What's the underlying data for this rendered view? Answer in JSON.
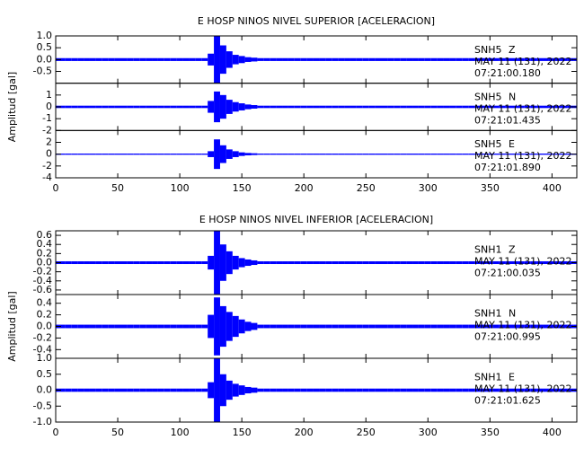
{
  "chart_data": [
    {
      "type": "seismogram",
      "title": "E HOSP NINOS NIVEL SUPERIOR [ACELERACION]",
      "ylabel": "Amplitud [gal]",
      "xlim": [
        0,
        420
      ],
      "xticks": [
        0,
        50,
        100,
        150,
        200,
        250,
        300,
        350,
        400
      ],
      "x": [
        0,
        5,
        10,
        15,
        20,
        25,
        30,
        35,
        40,
        45,
        50,
        55,
        60,
        65,
        70,
        75,
        80,
        85,
        90,
        95,
        100,
        105,
        110,
        115,
        120,
        125,
        130,
        135,
        140,
        145,
        150,
        155,
        160,
        165,
        170,
        175,
        180,
        185,
        190,
        195,
        200,
        205,
        210,
        215,
        220,
        225,
        230,
        235,
        240,
        245,
        250,
        255,
        260,
        265,
        270,
        275,
        280,
        285,
        290,
        295,
        300,
        305,
        310,
        315,
        320,
        325,
        330,
        335,
        340,
        345,
        350,
        355,
        360,
        365,
        370,
        375,
        380,
        385,
        390,
        395,
        400,
        405,
        410,
        415,
        420
      ],
      "series": [
        {
          "name": "SNH5",
          "component": "Z",
          "date": "MAY 11 (131), 2022",
          "time": "07:21:00.180",
          "color": "#0000ff",
          "ylim": [
            -1,
            1
          ],
          "yticks": [
            {
              "value": 1,
              "label": "1.0"
            },
            {
              "value": 0.5,
              "label": "0.5"
            },
            {
              "value": 0,
              "label": "0.0"
            },
            {
              "value": -0.5,
              "label": "-0.5"
            }
          ],
          "values": [
            0.06,
            0.06,
            0.06,
            0.06,
            0.06,
            0.06,
            0.06,
            0.06,
            0.06,
            0.06,
            0.06,
            0.06,
            0.06,
            0.06,
            0.06,
            0.06,
            0.06,
            0.06,
            0.06,
            0.06,
            0.06,
            0.06,
            0.06,
            0.06,
            0.06,
            0.25,
            1.0,
            0.6,
            0.35,
            0.2,
            0.15,
            0.1,
            0.08,
            0.06,
            0.06,
            0.06,
            0.06,
            0.06,
            0.06,
            0.06,
            0.06,
            0.06,
            0.06,
            0.06,
            0.06,
            0.06,
            0.06,
            0.06,
            0.06,
            0.06,
            0.06,
            0.06,
            0.06,
            0.06,
            0.06,
            0.06,
            0.06,
            0.06,
            0.06,
            0.06,
            0.06,
            0.06,
            0.06,
            0.06,
            0.06,
            0.06,
            0.06,
            0.06,
            0.06,
            0.06,
            0.06,
            0.06,
            0.06,
            0.06,
            0.06,
            0.06,
            0.06,
            0.06,
            0.06,
            0.06,
            0.06,
            0.06,
            0.06,
            0.06,
            0.06
          ]
        },
        {
          "name": "SNH5",
          "component": "N",
          "date": "MAY 11 (131), 2022",
          "time": "07:21:01.435",
          "color": "#0000ff",
          "ylim": [
            -2,
            2
          ],
          "yticks": [
            1,
            0,
            -1,
            -2
          ],
          "values": [
            0.1,
            0.1,
            0.1,
            0.1,
            0.1,
            0.1,
            0.1,
            0.1,
            0.1,
            0.1,
            0.1,
            0.1,
            0.1,
            0.1,
            0.1,
            0.1,
            0.1,
            0.1,
            0.1,
            0.1,
            0.1,
            0.1,
            0.1,
            0.1,
            0.1,
            0.5,
            1.3,
            1.0,
            0.6,
            0.4,
            0.3,
            0.2,
            0.15,
            0.1,
            0.1,
            0.1,
            0.1,
            0.1,
            0.1,
            0.1,
            0.1,
            0.1,
            0.1,
            0.1,
            0.1,
            0.1,
            0.1,
            0.1,
            0.1,
            0.1,
            0.1,
            0.1,
            0.1,
            0.1,
            0.1,
            0.1,
            0.1,
            0.1,
            0.1,
            0.1,
            0.1,
            0.1,
            0.1,
            0.1,
            0.1,
            0.1,
            0.1,
            0.1,
            0.1,
            0.1,
            0.1,
            0.1,
            0.1,
            0.1,
            0.1,
            0.1,
            0.1,
            0.1,
            0.1,
            0.1,
            0.1,
            0.1,
            0.1,
            0.1,
            0.1
          ]
        },
        {
          "name": "SNH5",
          "component": "E",
          "date": "MAY 11 (131), 2022",
          "time": "07:21:01.890",
          "color": "#0000ff",
          "ylim": [
            -4,
            4
          ],
          "yticks": [
            2,
            0,
            -2,
            -4
          ],
          "values": [
            0.1,
            0.1,
            0.1,
            0.1,
            0.1,
            0.1,
            0.1,
            0.1,
            0.1,
            0.1,
            0.1,
            0.1,
            0.1,
            0.1,
            0.1,
            0.1,
            0.1,
            0.1,
            0.1,
            0.1,
            0.1,
            0.1,
            0.1,
            0.1,
            0.1,
            0.5,
            2.5,
            1.5,
            0.8,
            0.5,
            0.3,
            0.2,
            0.15,
            0.1,
            0.1,
            0.1,
            0.1,
            0.1,
            0.1,
            0.1,
            0.1,
            0.1,
            0.1,
            0.1,
            0.1,
            0.1,
            0.1,
            0.1,
            0.1,
            0.1,
            0.1,
            0.1,
            0.1,
            0.1,
            0.1,
            0.1,
            0.1,
            0.1,
            0.1,
            0.1,
            0.1,
            0.1,
            0.1,
            0.1,
            0.1,
            0.1,
            0.1,
            0.1,
            0.1,
            0.1,
            0.1,
            0.1,
            0.1,
            0.1,
            0.1,
            0.1,
            0.1,
            0.1,
            0.1,
            0.1,
            0.1,
            0.1,
            0.1,
            0.1,
            0.1
          ]
        }
      ]
    },
    {
      "type": "seismogram",
      "title": "E HOSP NINOS NIVEL INFERIOR [ACELERACION]",
      "ylabel": "Amplitud [gal]",
      "xlim": [
        0,
        420
      ],
      "xticks": [
        0,
        50,
        100,
        150,
        200,
        250,
        300,
        350,
        400
      ],
      "x": [
        0,
        5,
        10,
        15,
        20,
        25,
        30,
        35,
        40,
        45,
        50,
        55,
        60,
        65,
        70,
        75,
        80,
        85,
        90,
        95,
        100,
        105,
        110,
        115,
        120,
        125,
        130,
        135,
        140,
        145,
        150,
        155,
        160,
        165,
        170,
        175,
        180,
        185,
        190,
        195,
        200,
        205,
        210,
        215,
        220,
        225,
        230,
        235,
        240,
        245,
        250,
        255,
        260,
        265,
        270,
        275,
        280,
        285,
        290,
        295,
        300,
        305,
        310,
        315,
        320,
        325,
        330,
        335,
        340,
        345,
        350,
        355,
        360,
        365,
        370,
        375,
        380,
        385,
        390,
        395,
        400,
        405,
        410,
        415,
        420
      ],
      "series": [
        {
          "name": "SNH1",
          "component": "Z",
          "date": "MAY 11 (131), 2022",
          "time": "07:21:00.035",
          "color": "#0000ff",
          "ylim": [
            -0.7,
            0.7
          ],
          "yticks": [
            0.6,
            0.4,
            0.2,
            {
              "value": 0,
              "label": "0.0"
            },
            -0.2,
            -0.4,
            -0.6
          ],
          "values": [
            0.03,
            0.03,
            0.03,
            0.03,
            0.03,
            0.03,
            0.03,
            0.03,
            0.03,
            0.03,
            0.03,
            0.03,
            0.03,
            0.03,
            0.03,
            0.03,
            0.03,
            0.03,
            0.03,
            0.03,
            0.03,
            0.03,
            0.03,
            0.03,
            0.03,
            0.15,
            0.7,
            0.4,
            0.25,
            0.15,
            0.1,
            0.07,
            0.05,
            0.03,
            0.03,
            0.03,
            0.03,
            0.03,
            0.03,
            0.03,
            0.03,
            0.03,
            0.03,
            0.03,
            0.03,
            0.03,
            0.03,
            0.03,
            0.03,
            0.03,
            0.03,
            0.03,
            0.03,
            0.03,
            0.03,
            0.03,
            0.03,
            0.03,
            0.03,
            0.03,
            0.03,
            0.03,
            0.03,
            0.03,
            0.03,
            0.03,
            0.03,
            0.03,
            0.03,
            0.03,
            0.03,
            0.03,
            0.03,
            0.03,
            0.03,
            0.03,
            0.03,
            0.03,
            0.03,
            0.03,
            0.03,
            0.03,
            0.03,
            0.03,
            0.03
          ]
        },
        {
          "name": "SNH1",
          "component": "N",
          "date": "MAY 11 (131), 2022",
          "time": "07:21:00.995",
          "color": "#0000ff",
          "ylim": [
            -0.55,
            0.55
          ],
          "yticks": [
            0.4,
            0.2,
            {
              "value": 0,
              "label": "0.0"
            },
            -0.2,
            -0.4
          ],
          "values": [
            0.03,
            0.03,
            0.03,
            0.03,
            0.03,
            0.03,
            0.03,
            0.03,
            0.03,
            0.03,
            0.03,
            0.03,
            0.03,
            0.03,
            0.03,
            0.03,
            0.03,
            0.03,
            0.03,
            0.03,
            0.03,
            0.03,
            0.03,
            0.03,
            0.03,
            0.2,
            0.5,
            0.35,
            0.25,
            0.18,
            0.12,
            0.08,
            0.06,
            0.03,
            0.03,
            0.03,
            0.03,
            0.03,
            0.03,
            0.03,
            0.03,
            0.03,
            0.03,
            0.03,
            0.03,
            0.03,
            0.03,
            0.03,
            0.03,
            0.03,
            0.03,
            0.03,
            0.03,
            0.03,
            0.03,
            0.03,
            0.03,
            0.03,
            0.03,
            0.03,
            0.03,
            0.03,
            0.03,
            0.03,
            0.03,
            0.03,
            0.03,
            0.03,
            0.03,
            0.03,
            0.03,
            0.03,
            0.03,
            0.03,
            0.03,
            0.03,
            0.03,
            0.03,
            0.03,
            0.03,
            0.03,
            0.03,
            0.03,
            0.03,
            0.03
          ]
        },
        {
          "name": "SNH1",
          "component": "E",
          "date": "MAY 11 (131), 2022",
          "time": "07:21:01.625",
          "color": "#0000ff",
          "ylim": [
            -1,
            1
          ],
          "yticks": [
            {
              "value": 1,
              "label": "1.0"
            },
            0.5,
            {
              "value": 0,
              "label": "0.0"
            },
            -0.5,
            {
              "value": -1,
              "label": "-1.0"
            }
          ],
          "values": [
            0.05,
            0.05,
            0.05,
            0.05,
            0.05,
            0.05,
            0.05,
            0.05,
            0.05,
            0.05,
            0.05,
            0.05,
            0.05,
            0.05,
            0.05,
            0.05,
            0.05,
            0.05,
            0.05,
            0.05,
            0.05,
            0.05,
            0.05,
            0.05,
            0.05,
            0.25,
            1.0,
            0.5,
            0.3,
            0.2,
            0.15,
            0.1,
            0.08,
            0.05,
            0.05,
            0.05,
            0.05,
            0.05,
            0.05,
            0.05,
            0.05,
            0.05,
            0.05,
            0.05,
            0.05,
            0.05,
            0.05,
            0.05,
            0.05,
            0.05,
            0.05,
            0.05,
            0.05,
            0.05,
            0.05,
            0.05,
            0.05,
            0.05,
            0.05,
            0.05,
            0.05,
            0.05,
            0.05,
            0.05,
            0.05,
            0.05,
            0.05,
            0.05,
            0.05,
            0.05,
            0.05,
            0.05,
            0.05,
            0.05,
            0.05,
            0.05,
            0.05,
            0.05,
            0.05,
            0.05,
            0.05,
            0.05,
            0.05,
            0.05,
            0.05
          ]
        }
      ]
    }
  ]
}
